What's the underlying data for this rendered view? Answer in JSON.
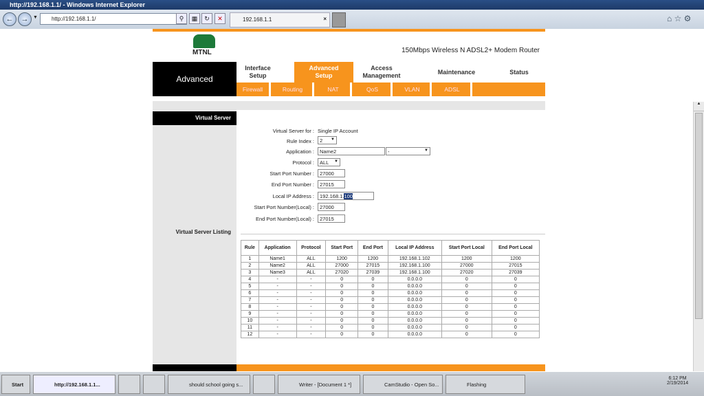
{
  "browser": {
    "window_title": "http://192.168.1.1/ - Windows Internet Explorer",
    "address": "http://192.168.1.1/",
    "tab_title": "192.168.1.1"
  },
  "header": {
    "logo_text": "MTNL",
    "product": "150Mbps Wireless N ADSL2+ Modem Router",
    "section": "Advanced"
  },
  "nav": {
    "tabs": [
      {
        "label1": "Interface",
        "label2": "Setup"
      },
      {
        "label1": "Advanced",
        "label2": "Setup"
      },
      {
        "label1": "Access",
        "label2": "Management"
      },
      {
        "label1": "Maintenance",
        "label2": ""
      },
      {
        "label1": "Status",
        "label2": ""
      }
    ],
    "subtabs": [
      "Firewall",
      "Routing",
      "NAT",
      "QoS",
      "VLAN",
      "ADSL"
    ]
  },
  "sidebar": {
    "virtual_server": "Virtual Server",
    "listing": "Virtual Server Listing"
  },
  "form": {
    "for_label": "Virtual Server for",
    "for_value": "Single IP Account",
    "rule_index_label": "Rule Index",
    "rule_index": "2",
    "application_label": "Application",
    "application": "Name2",
    "application_select": "-",
    "protocol_label": "Protocol",
    "protocol": "ALL",
    "start_port_label": "Start Port Number",
    "start_port": "27000",
    "end_port_label": "End Port Number",
    "end_port": "27015",
    "local_ip_label": "Local IP Address",
    "local_ip_prefix": "192.168.1.",
    "local_ip_selected": "100",
    "start_local_label": "Start Port Number(Local)",
    "start_local": "27000",
    "end_local_label": "End Port Number(Local)",
    "end_local": "27015"
  },
  "table": {
    "headers": [
      "Rule",
      "Application",
      "Protocol",
      "Start Port",
      "End Port",
      "Local IP Address",
      "Start Port Local",
      "End Port Local"
    ],
    "rows": [
      [
        "1",
        "Name1",
        "ALL",
        "1200",
        "1200",
        "192.168.1.102",
        "1200",
        "1200"
      ],
      [
        "2",
        "Name2",
        "ALL",
        "27000",
        "27015",
        "192.168.1.100",
        "27000",
        "27015"
      ],
      [
        "3",
        "Name3",
        "ALL",
        "27020",
        "27039",
        "192.168.1.100",
        "27020",
        "27039"
      ],
      [
        "4",
        "-",
        "-",
        "0",
        "0",
        "0.0.0.0",
        "0",
        "0"
      ],
      [
        "5",
        "-",
        "-",
        "0",
        "0",
        "0.0.0.0",
        "0",
        "0"
      ],
      [
        "6",
        "-",
        "-",
        "0",
        "0",
        "0.0.0.0",
        "0",
        "0"
      ],
      [
        "7",
        "-",
        "-",
        "0",
        "0",
        "0.0.0.0",
        "0",
        "0"
      ],
      [
        "8",
        "-",
        "-",
        "0",
        "0",
        "0.0.0.0",
        "0",
        "0"
      ],
      [
        "9",
        "-",
        "-",
        "0",
        "0",
        "0.0.0.0",
        "0",
        "0"
      ],
      [
        "10",
        "-",
        "-",
        "0",
        "0",
        "0.0.0.0",
        "0",
        "0"
      ],
      [
        "11",
        "-",
        "-",
        "0",
        "0",
        "0.0.0.0",
        "0",
        "0"
      ],
      [
        "12",
        "-",
        "-",
        "0",
        "0",
        "0.0.0.0",
        "0",
        "0"
      ]
    ]
  },
  "taskbar": {
    "start": "Start",
    "items": [
      "http://192.168.1.1...",
      "",
      "",
      "should school going s...",
      "",
      "Writer - [Document 1 *]",
      "CamStudio - Open So...",
      "Flashing"
    ],
    "time": "6:12 PM",
    "date": "2/19/2014"
  },
  "colors": {
    "accent": "#f7941d",
    "black": "#000000"
  }
}
